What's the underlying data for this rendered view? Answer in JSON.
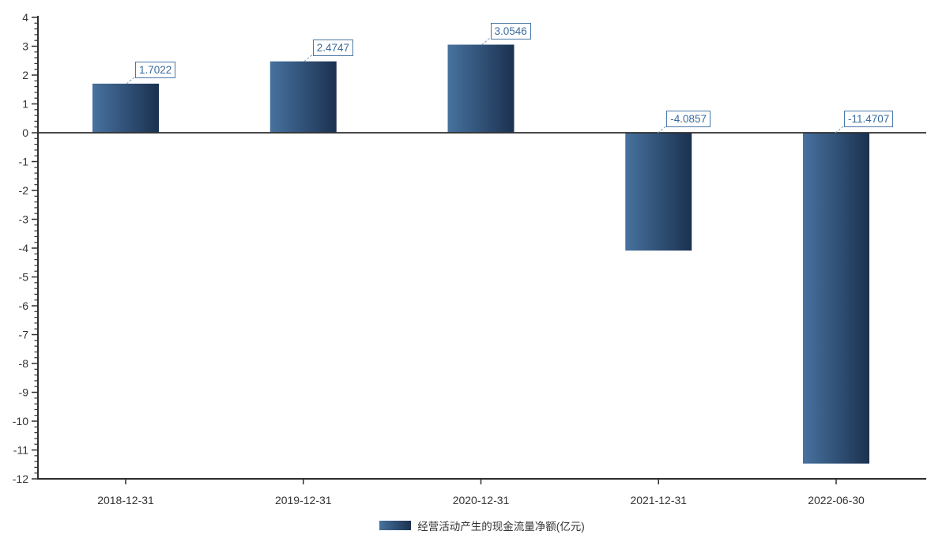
{
  "chart_data": {
    "type": "bar",
    "title": "",
    "xlabel": "",
    "ylabel": "",
    "categories": [
      "2018-12-31",
      "2019-12-31",
      "2020-12-31",
      "2021-12-31",
      "2022-06-30"
    ],
    "values": [
      1.7022,
      2.4747,
      3.0546,
      -4.0857,
      -11.4707
    ],
    "value_labels": [
      "1.7022",
      "2.4747",
      "3.0546",
      "-4.0857",
      "-11.4707"
    ],
    "legend": [
      "经营活动产生的现金流量净额(亿元)"
    ],
    "legend_position": "bottom",
    "ylim": [
      -12,
      4
    ],
    "y_major_tick_step": 1,
    "y_minor_tick_step": 0.2,
    "y_tick_labels": [
      "4",
      "3",
      "2",
      "1",
      "0",
      "-1",
      "-2",
      "-3",
      "-4",
      "-5",
      "-6",
      "-7",
      "-8",
      "-9",
      "-10",
      "-11",
      "-12"
    ],
    "grid": false,
    "colors": {
      "bar_gradient_start": "#47729f",
      "bar_gradient_end": "#1b3150",
      "value_label_text": "#3a6b9c",
      "value_label_border": "#4a77a8",
      "leader_line": "#7e9cc0",
      "axis_line": "#2f2f2f",
      "tick_label": "#333333",
      "background": "#ffffff"
    }
  }
}
